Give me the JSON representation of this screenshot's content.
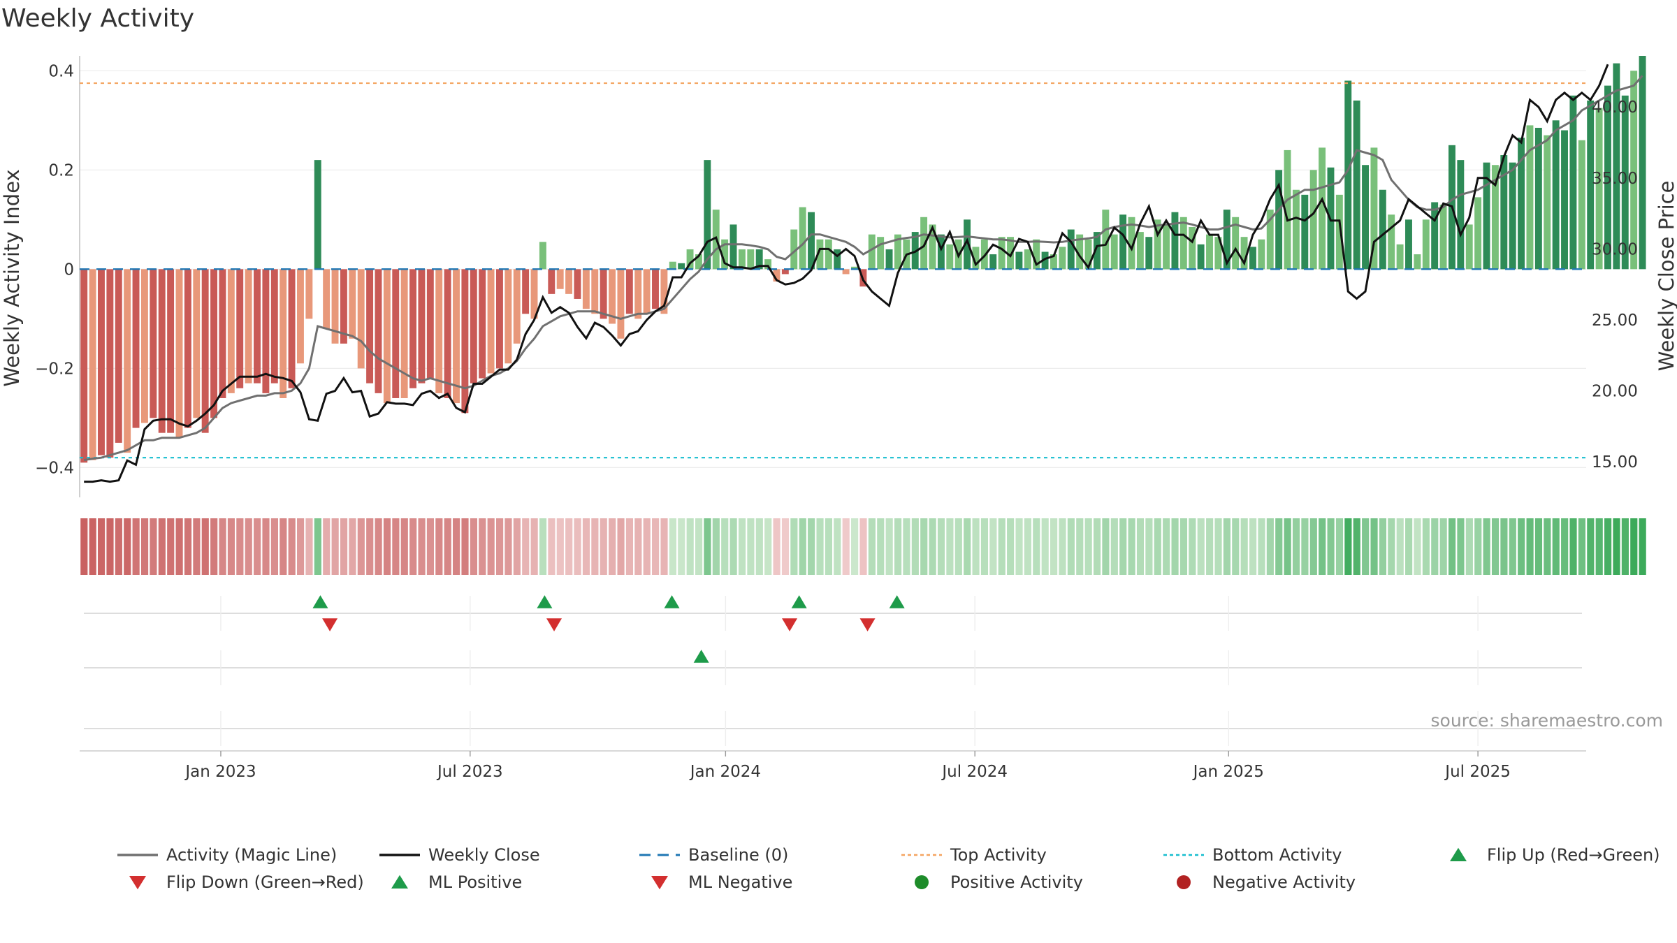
{
  "chart_data": {
    "type": "bar",
    "title": "Weekly Activity",
    "ylabel": "Weekly Activity Index",
    "y2label": "Weekly Close Price",
    "ylim": [
      -0.46,
      0.43
    ],
    "y2lim": [
      12.5,
      43.6
    ],
    "yticks": [
      0.4,
      0.2,
      0,
      -0.2,
      -0.4
    ],
    "ytick_labels": [
      "0.4",
      "0.2",
      "0",
      "−0.2",
      "−0.4"
    ],
    "y2ticks": [
      40.0,
      35.0,
      30.0,
      25.0,
      20.0,
      15.0
    ],
    "y2tick_labels": [
      "40.00",
      "35.00",
      "30.00",
      "25.00",
      "20.00",
      "15.00"
    ],
    "xlim": [
      0,
      174
    ],
    "x_ticks": [
      {
        "label": "Jan 2023",
        "pos": 16.3
      },
      {
        "label": "Jul 2023",
        "pos": 45.1
      },
      {
        "label": "Jan 2024",
        "pos": 74.6
      },
      {
        "label": "Jul 2024",
        "pos": 103.4
      },
      {
        "label": "Jan 2025",
        "pos": 132.7
      },
      {
        "label": "Jul 2025",
        "pos": 161.5
      }
    ],
    "activity": [
      -0.39,
      -0.385,
      -0.375,
      -0.38,
      -0.35,
      -0.37,
      -0.32,
      -0.31,
      -0.3,
      -0.33,
      -0.33,
      -0.34,
      -0.32,
      -0.3,
      -0.33,
      -0.3,
      -0.26,
      -0.25,
      -0.24,
      -0.23,
      -0.23,
      -0.25,
      -0.23,
      -0.26,
      -0.24,
      -0.19,
      -0.1,
      0.22,
      -0.12,
      -0.15,
      -0.15,
      -0.14,
      -0.2,
      -0.23,
      -0.25,
      -0.27,
      -0.26,
      -0.26,
      -0.24,
      -0.23,
      -0.22,
      -0.25,
      -0.26,
      -0.27,
      -0.29,
      -0.23,
      -0.22,
      -0.21,
      -0.2,
      -0.19,
      -0.15,
      -0.09,
      -0.1,
      0.055,
      -0.05,
      -0.04,
      -0.05,
      -0.06,
      -0.08,
      -0.09,
      -0.1,
      -0.11,
      -0.14,
      -0.09,
      -0.1,
      -0.09,
      -0.08,
      -0.09,
      0.015,
      0.012,
      0.04,
      0.03,
      0.22,
      0.12,
      0.06,
      0.09,
      0.04,
      0.04,
      0.04,
      0.02,
      -0.025,
      -0.01,
      0.08,
      0.125,
      0.115,
      0.06,
      0.06,
      0.04,
      -0.01,
      0.005,
      -0.035,
      0.07,
      0.065,
      0.04,
      0.07,
      0.06,
      0.075,
      0.105,
      0.09,
      0.07,
      0.05,
      0.06,
      0.1,
      0.045,
      0.06,
      0.03,
      0.065,
      0.065,
      0.035,
      0.04,
      0.06,
      0.035,
      0.03,
      0.045,
      0.08,
      0.07,
      0.06,
      0.075,
      0.12,
      0.07,
      0.11,
      0.105,
      0.075,
      0.065,
      0.1,
      0.09,
      0.115,
      0.105,
      0.085,
      0.05,
      0.07,
      0.065,
      0.12,
      0.105,
      0.065,
      0.045,
      0.06,
      0.12,
      0.2,
      0.24,
      0.16,
      0.15,
      0.2,
      0.245,
      0.205,
      0.15,
      0.38,
      0.34,
      0.21,
      0.245,
      0.16,
      0.11,
      0.05,
      0.1,
      0.03,
      0.1,
      0.135,
      0.13,
      0.25,
      0.22,
      0.09,
      0.145,
      0.215,
      0.21,
      0.23,
      0.215,
      0.265,
      0.29,
      0.285,
      0.27,
      0.3,
      0.28,
      0.35,
      0.26,
      0.34,
      0.325,
      0.37,
      0.415,
      0.35,
      0.4,
      0.43
    ],
    "magic_line": [
      -0.385,
      -0.382,
      -0.38,
      -0.375,
      -0.37,
      -0.365,
      -0.355,
      -0.345,
      -0.345,
      -0.34,
      -0.34,
      -0.34,
      -0.335,
      -0.33,
      -0.32,
      -0.3,
      -0.28,
      -0.27,
      -0.265,
      -0.26,
      -0.255,
      -0.255,
      -0.25,
      -0.25,
      -0.245,
      -0.23,
      -0.2,
      -0.115,
      -0.12,
      -0.125,
      -0.13,
      -0.135,
      -0.145,
      -0.165,
      -0.18,
      -0.19,
      -0.2,
      -0.21,
      -0.22,
      -0.225,
      -0.22,
      -0.225,
      -0.23,
      -0.235,
      -0.24,
      -0.235,
      -0.225,
      -0.215,
      -0.21,
      -0.2,
      -0.185,
      -0.16,
      -0.14,
      -0.115,
      -0.105,
      -0.095,
      -0.09,
      -0.085,
      -0.085,
      -0.085,
      -0.09,
      -0.095,
      -0.1,
      -0.095,
      -0.09,
      -0.09,
      -0.085,
      -0.08,
      -0.06,
      -0.04,
      -0.02,
      -0.005,
      0.02,
      0.04,
      0.05,
      0.05,
      0.05,
      0.048,
      0.045,
      0.04,
      0.025,
      0.02,
      0.035,
      0.05,
      0.07,
      0.07,
      0.065,
      0.06,
      0.055,
      0.045,
      0.03,
      0.04,
      0.05,
      0.055,
      0.06,
      0.063,
      0.065,
      0.07,
      0.068,
      0.066,
      0.064,
      0.065,
      0.066,
      0.064,
      0.062,
      0.06,
      0.06,
      0.058,
      0.055,
      0.055,
      0.056,
      0.055,
      0.054,
      0.055,
      0.058,
      0.06,
      0.062,
      0.065,
      0.08,
      0.085,
      0.088,
      0.09,
      0.088,
      0.085,
      0.088,
      0.09,
      0.092,
      0.094,
      0.09,
      0.085,
      0.08,
      0.08,
      0.085,
      0.09,
      0.085,
      0.08,
      0.082,
      0.1,
      0.12,
      0.14,
      0.15,
      0.16,
      0.16,
      0.165,
      0.17,
      0.175,
      0.2,
      0.24,
      0.235,
      0.23,
      0.22,
      0.18,
      0.16,
      0.14,
      0.125,
      0.12,
      0.12,
      0.125,
      0.14,
      0.15,
      0.155,
      0.16,
      0.17,
      0.18,
      0.19,
      0.2,
      0.22,
      0.24,
      0.25,
      0.26,
      0.28,
      0.29,
      0.3,
      0.32,
      0.33,
      0.34,
      0.35,
      0.36,
      0.365,
      0.37,
      0.39
    ],
    "weekly_close": [
      13.6,
      13.6,
      13.7,
      13.6,
      13.7,
      15.1,
      14.8,
      17.3,
      17.9,
      18.0,
      18.0,
      17.7,
      17.5,
      17.9,
      18.4,
      19.0,
      20.0,
      20.5,
      21.0,
      21.0,
      21.0,
      21.2,
      21.0,
      20.9,
      20.7,
      19.9,
      18.0,
      17.9,
      19.8,
      20.0,
      20.9,
      19.9,
      20.0,
      18.2,
      18.4,
      19.2,
      19.1,
      19.1,
      19.0,
      19.8,
      20.0,
      19.5,
      19.8,
      18.8,
      18.5,
      20.5,
      20.5,
      21.0,
      21.5,
      21.5,
      22.2,
      24.0,
      25.0,
      26.6,
      25.5,
      25.9,
      25.5,
      24.5,
      23.7,
      24.8,
      24.5,
      23.9,
      23.2,
      24.0,
      24.2,
      25.0,
      25.6,
      26.0,
      28.0,
      28.0,
      29.0,
      29.5,
      30.5,
      30.8,
      29.0,
      28.7,
      28.7,
      28.6,
      28.8,
      28.8,
      27.8,
      27.5,
      27.6,
      27.9,
      28.5,
      30.0,
      30.0,
      29.5,
      30.0,
      29.5,
      27.8,
      27.0,
      26.5,
      26.0,
      28.3,
      29.6,
      29.8,
      30.2,
      31.5,
      30.0,
      31.2,
      29.5,
      30.6,
      28.9,
      29.5,
      30.3,
      30.0,
      29.5,
      30.7,
      30.5,
      28.9,
      29.3,
      29.5,
      31.1,
      30.5,
      29.5,
      28.7,
      30.2,
      30.3,
      31.5,
      31.0,
      30.0,
      31.8,
      33.0,
      31.0,
      32.0,
      31.0,
      31.0,
      30.5,
      32.0,
      31.0,
      31.0,
      29.0,
      30.0,
      29.0,
      31.0,
      32.0,
      33.5,
      34.5,
      32.0,
      32.2,
      32.0,
      32.5,
      33.5,
      32.0,
      32.0,
      27.0,
      26.5,
      27.0,
      30.5,
      31.0,
      31.5,
      32.0,
      33.5,
      33.0,
      32.5,
      32.0,
      33.2,
      33.0,
      31.0,
      32.2,
      35.0,
      35.0,
      34.5,
      36.5,
      38.0,
      37.5,
      40.5,
      40.0,
      39.0,
      40.5,
      41.0,
      40.5,
      41.0,
      40.5,
      41.5,
      43.0
    ],
    "heat_strip": "activity-colored strip, red (negative) to green (positive)",
    "flip_up": [
      27.3,
      53.2,
      67.9,
      82.6,
      93.9
    ],
    "flip_down": [
      28.4,
      54.3,
      81.5,
      90.5
    ],
    "ml_positive": [
      71.3
    ],
    "ml_negative": [],
    "positive_activity": [],
    "negative_activity": [],
    "reference_lines": {
      "top_activity": 0.375,
      "bottom_activity": -0.38,
      "baseline": 0
    },
    "colors": {
      "neg_dark": "#c95a56",
      "neg_light": "#e8987a",
      "pos_dark": "#2e8b57",
      "pos_light": "#79c07a",
      "magic_line": "#707070",
      "weekly_close": "#111111",
      "baseline": "#1f77b4",
      "top_activity": "#f4a460",
      "bottom_activity": "#17becf",
      "marker_green": "#1e9b4a",
      "marker_red": "#d32f2f",
      "grid": "#ececec"
    },
    "legend": [
      {
        "label": "Activity (Magic Line)",
        "kind": "line",
        "color": "#707070"
      },
      {
        "label": "Weekly Close",
        "kind": "line",
        "color": "#111111"
      },
      {
        "label": "Baseline (0)",
        "kind": "dash",
        "color": "#1f77b4"
      },
      {
        "label": "Top Activity",
        "kind": "dot",
        "color": "#f4a460"
      },
      {
        "label": "Bottom Activity",
        "kind": "dot",
        "color": "#17becf"
      },
      {
        "label": "Flip Up (Red→Green)",
        "kind": "tri-up",
        "color": "#1e9b4a"
      },
      {
        "label": "Flip Down (Green→Red)",
        "kind": "tri-down",
        "color": "#d32f2f"
      },
      {
        "label": "ML Positive",
        "kind": "tri-up",
        "color": "#1e9b4a"
      },
      {
        "label": "ML Negative",
        "kind": "tri-down",
        "color": "#d32f2f"
      },
      {
        "label": "Positive Activity",
        "kind": "circle",
        "color": "#1e8c2a"
      },
      {
        "label": "Negative Activity",
        "kind": "circle",
        "color": "#b22222"
      }
    ],
    "source": "source: sharemaestro.com"
  }
}
